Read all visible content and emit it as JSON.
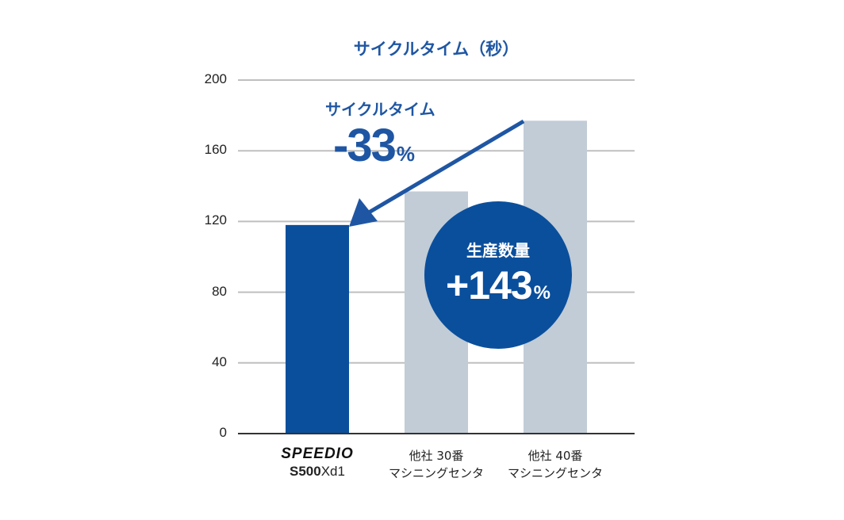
{
  "chart_data": {
    "type": "bar",
    "title": "サイクルタイム（秒）",
    "categories": [
      "SPEEDIO S500Xd1",
      "他社 30番 マシニングセンタ",
      "他社 40番 マシニングセンタ"
    ],
    "category_labels": [
      {
        "line1": "SPEEDIO",
        "line2_bold": "S500",
        "line2_regular": "Xd1"
      },
      {
        "line1": "他社 30番",
        "line2": "マシニングセンタ"
      },
      {
        "line1": "他社 40番",
        "line2": "マシニングセンタ"
      }
    ],
    "values": [
      118,
      137,
      177
    ],
    "ylim": [
      0,
      200
    ],
    "yticks": [
      "200",
      "160",
      "120",
      "80",
      "40",
      "0"
    ],
    "ytick_values": [
      200,
      160,
      120,
      80,
      40,
      0
    ],
    "grid": true,
    "colors": {
      "primary_bar": "#0a4f9c",
      "competitor_bar": "#c1ccd7",
      "accent": "#1f56a3",
      "grid": "#bfbfbf",
      "axis": "#333333"
    },
    "annotations": {
      "cycle_time": {
        "label": "サイクルタイム",
        "value": "-33",
        "unit": "%"
      },
      "production": {
        "label": "生産数量",
        "value": "+143",
        "unit": "%"
      }
    }
  }
}
